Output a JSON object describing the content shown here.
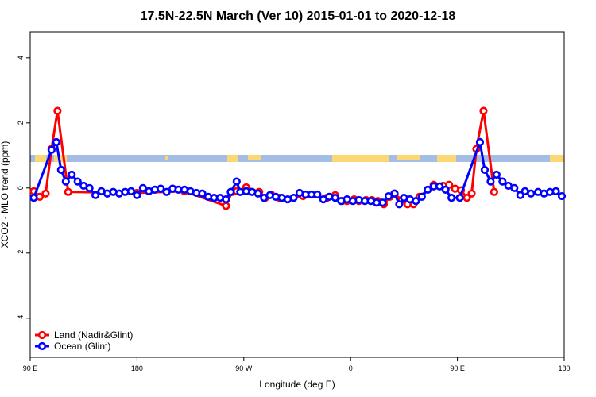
{
  "chart_data": {
    "type": "line",
    "title": "17.5N-22.5N March (Ver 10)   2015-01-01 to 2020-12-18",
    "x_label": "Longitude (deg E)",
    "y_label": "XCO2 - MLO trend (ppm)",
    "xlim": [
      90,
      540
    ],
    "ylim": [
      -5.2,
      4.8
    ],
    "xticks": [
      {
        "value": 90,
        "label": "90 E"
      },
      180,
      {
        "value": 270,
        "label": "90 W"
      },
      {
        "value": 360,
        "label": "0"
      },
      {
        "value": 450,
        "label": "90 E"
      },
      {
        "value": 540,
        "label": "180"
      }
    ],
    "yticks": [
      -4,
      -2,
      0,
      2,
      4
    ],
    "legend": "bottom-left",
    "series": [
      {
        "name": "Land (Nadir&Glint)",
        "color": "#ff0000",
        "x": [
          93,
          98,
          103,
          108,
          113,
          122,
          180,
          220,
          255,
          260,
          264,
          272,
          283,
          288,
          293,
          300,
          320,
          340,
          347,
          353,
          357,
          363,
          367,
          373,
          378,
          383,
          388,
          393,
          397,
          403,
          408,
          413,
          418,
          430,
          438,
          443,
          448,
          453,
          458,
          462,
          466,
          472,
          481
        ],
        "values": [
          -0.1,
          -0.27,
          -0.17,
          1.2,
          2.37,
          -0.12,
          -0.15,
          -0.1,
          -0.55,
          -0.12,
          -0.1,
          0.02,
          -0.12,
          -0.3,
          -0.2,
          -0.3,
          -0.25,
          -0.3,
          -0.22,
          -0.4,
          -0.4,
          -0.35,
          -0.4,
          -0.37,
          -0.37,
          -0.4,
          -0.5,
          -0.27,
          -0.17,
          -0.37,
          -0.5,
          -0.5,
          -0.27,
          0.1,
          0.07,
          0.1,
          -0.02,
          -0.07,
          -0.3,
          -0.17,
          1.2,
          2.37,
          -0.12
        ]
      },
      {
        "name": "Ocean (Glint)",
        "color": "#0000ff",
        "x": [
          93,
          108,
          112,
          116,
          120,
          125,
          130,
          135,
          140,
          145,
          150,
          155,
          160,
          165,
          170,
          175,
          180,
          185,
          190,
          195,
          200,
          205,
          210,
          215,
          220,
          225,
          230,
          235,
          240,
          245,
          250,
          255,
          259,
          264,
          267,
          272,
          277,
          282,
          287,
          292,
          297,
          302,
          307,
          312,
          317,
          322,
          327,
          332,
          337,
          342,
          347,
          352,
          357,
          362,
          367,
          372,
          377,
          382,
          387,
          392,
          397,
          401,
          405,
          410,
          415,
          420,
          425,
          430,
          435,
          440,
          445,
          452,
          469,
          473,
          478,
          483,
          488,
          493,
          498,
          503,
          507,
          512,
          518,
          523,
          528,
          533,
          538
        ],
        "values": [
          -0.3,
          1.17,
          1.41,
          0.56,
          0.2,
          0.41,
          0.2,
          0.07,
          0.0,
          -0.22,
          -0.1,
          -0.17,
          -0.12,
          -0.17,
          -0.12,
          -0.1,
          -0.22,
          0.0,
          -0.1,
          -0.05,
          -0.02,
          -0.12,
          -0.02,
          -0.05,
          -0.05,
          -0.1,
          -0.15,
          -0.17,
          -0.27,
          -0.3,
          -0.3,
          -0.35,
          -0.12,
          0.2,
          -0.12,
          -0.1,
          -0.12,
          -0.17,
          -0.3,
          -0.22,
          -0.27,
          -0.3,
          -0.35,
          -0.3,
          -0.15,
          -0.2,
          -0.2,
          -0.2,
          -0.35,
          -0.27,
          -0.3,
          -0.4,
          -0.35,
          -0.4,
          -0.37,
          -0.4,
          -0.4,
          -0.45,
          -0.45,
          -0.25,
          -0.17,
          -0.5,
          -0.3,
          -0.35,
          -0.4,
          -0.27,
          -0.05,
          0.05,
          0.05,
          -0.05,
          -0.3,
          -0.3,
          1.41,
          0.56,
          0.2,
          0.41,
          0.2,
          0.07,
          0.0,
          -0.22,
          -0.1,
          -0.17,
          -0.12,
          -0.17,
          -0.12,
          -0.1,
          -0.25
        ]
      }
    ]
  }
}
